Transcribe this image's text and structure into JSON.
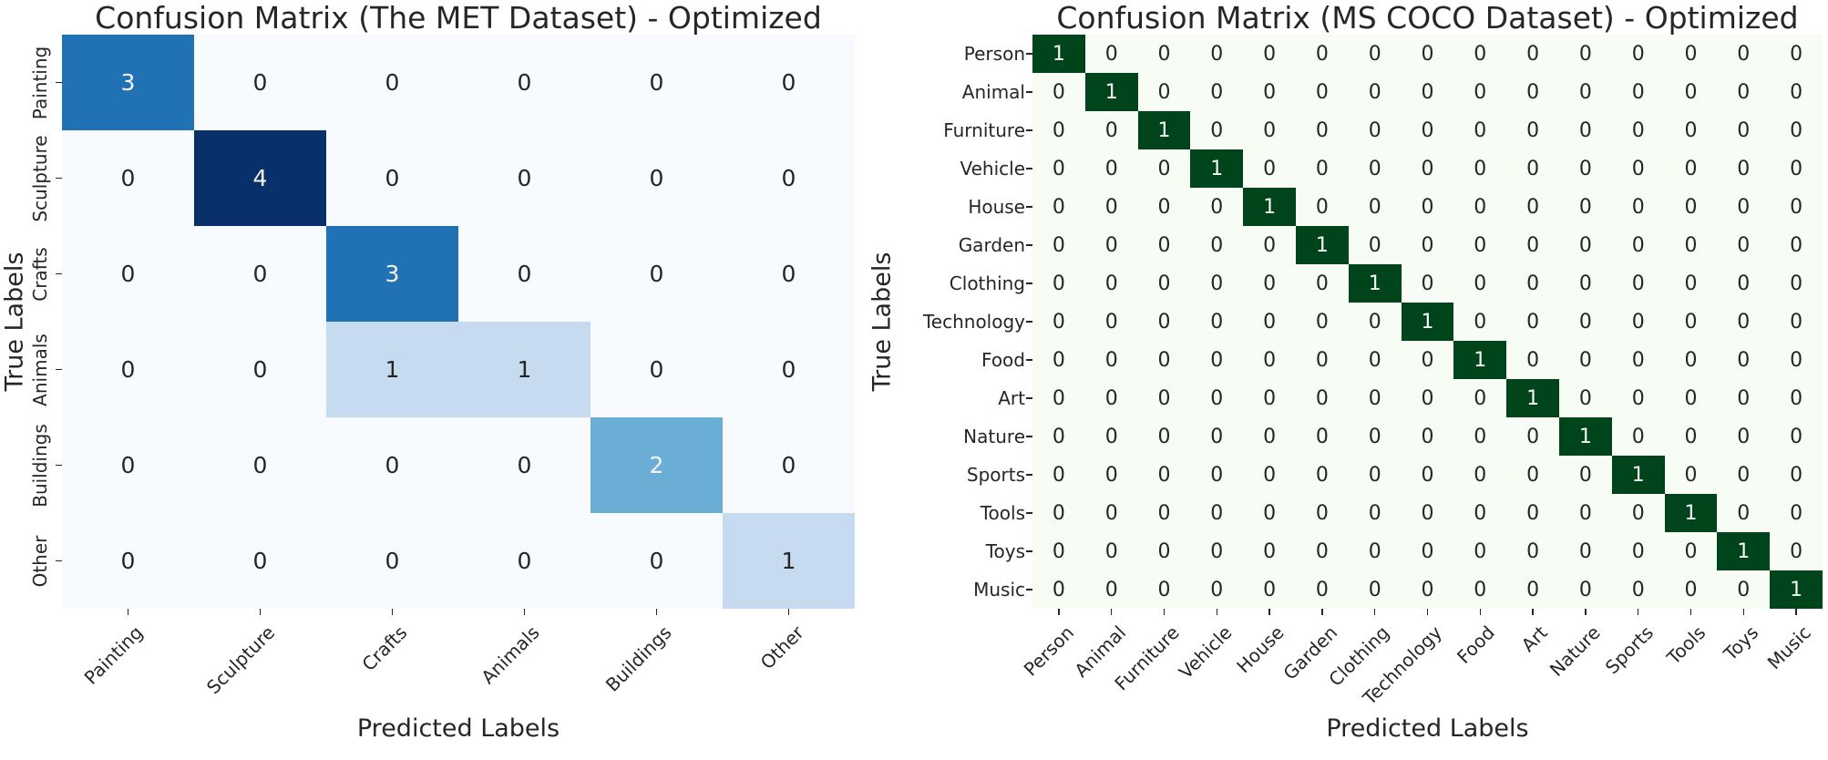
{
  "chart_data": [
    {
      "type": "heatmap",
      "title": "Confusion Matrix (The MET Dataset) - Optimized",
      "xlabel": "Predicted Labels",
      "ylabel": "True Labels",
      "x_categories": [
        "Painting",
        "Sculpture",
        "Crafts",
        "Animals",
        "Buildings",
        "Other"
      ],
      "y_categories": [
        "Painting",
        "Sculpture",
        "Crafts",
        "Animals",
        "Buildings",
        "Other"
      ],
      "matrix": [
        [
          3,
          0,
          0,
          0,
          0,
          0
        ],
        [
          0,
          4,
          0,
          0,
          0,
          0
        ],
        [
          0,
          0,
          3,
          0,
          0,
          0
        ],
        [
          0,
          0,
          1,
          1,
          0,
          0
        ],
        [
          0,
          0,
          0,
          0,
          2,
          0
        ],
        [
          0,
          0,
          0,
          0,
          0,
          1
        ]
      ],
      "colormap": "Blues",
      "vmin": 0,
      "vmax": 4,
      "value_colors": {
        "0": "#f7fbff",
        "1": "#c6dbef",
        "2": "#6aaed6",
        "3": "#2171b5",
        "4": "#08306b"
      },
      "annotation_text_colors": {
        "on_light": "#262626",
        "on_dark": "#f5f5f5"
      },
      "legend_position": "none",
      "grid": false
    },
    {
      "type": "heatmap",
      "title": "Confusion Matrix (MS COCO Dataset) - Optimized",
      "xlabel": "Predicted Labels",
      "ylabel": "True Labels",
      "x_categories": [
        "Person",
        "Animal",
        "Furniture",
        "Vehicle",
        "House",
        "Garden",
        "Clothing",
        "Technology",
        "Food",
        "Art",
        "Nature",
        "Sports",
        "Tools",
        "Toys",
        "Music"
      ],
      "y_categories": [
        "Person",
        "Animal",
        "Furniture",
        "Vehicle",
        "House",
        "Garden",
        "Clothing",
        "Technology",
        "Food",
        "Art",
        "Nature",
        "Sports",
        "Tools",
        "Toys",
        "Music"
      ],
      "matrix": [
        [
          1,
          0,
          0,
          0,
          0,
          0,
          0,
          0,
          0,
          0,
          0,
          0,
          0,
          0,
          0
        ],
        [
          0,
          1,
          0,
          0,
          0,
          0,
          0,
          0,
          0,
          0,
          0,
          0,
          0,
          0,
          0
        ],
        [
          0,
          0,
          1,
          0,
          0,
          0,
          0,
          0,
          0,
          0,
          0,
          0,
          0,
          0,
          0
        ],
        [
          0,
          0,
          0,
          1,
          0,
          0,
          0,
          0,
          0,
          0,
          0,
          0,
          0,
          0,
          0
        ],
        [
          0,
          0,
          0,
          0,
          1,
          0,
          0,
          0,
          0,
          0,
          0,
          0,
          0,
          0,
          0
        ],
        [
          0,
          0,
          0,
          0,
          0,
          1,
          0,
          0,
          0,
          0,
          0,
          0,
          0,
          0,
          0
        ],
        [
          0,
          0,
          0,
          0,
          0,
          0,
          1,
          0,
          0,
          0,
          0,
          0,
          0,
          0,
          0
        ],
        [
          0,
          0,
          0,
          0,
          0,
          0,
          0,
          1,
          0,
          0,
          0,
          0,
          0,
          0,
          0
        ],
        [
          0,
          0,
          0,
          0,
          0,
          0,
          0,
          0,
          1,
          0,
          0,
          0,
          0,
          0,
          0
        ],
        [
          0,
          0,
          0,
          0,
          0,
          0,
          0,
          0,
          0,
          1,
          0,
          0,
          0,
          0,
          0
        ],
        [
          0,
          0,
          0,
          0,
          0,
          0,
          0,
          0,
          0,
          0,
          1,
          0,
          0,
          0,
          0
        ],
        [
          0,
          0,
          0,
          0,
          0,
          0,
          0,
          0,
          0,
          0,
          0,
          1,
          0,
          0,
          0
        ],
        [
          0,
          0,
          0,
          0,
          0,
          0,
          0,
          0,
          0,
          0,
          0,
          0,
          1,
          0,
          0
        ],
        [
          0,
          0,
          0,
          0,
          0,
          0,
          0,
          0,
          0,
          0,
          0,
          0,
          0,
          1,
          0
        ],
        [
          0,
          0,
          0,
          0,
          0,
          0,
          0,
          0,
          0,
          0,
          0,
          0,
          0,
          0,
          1
        ]
      ],
      "colormap": "Greens",
      "vmin": 0,
      "vmax": 1,
      "value_colors": {
        "0": "#f7fcf5",
        "1": "#00441b"
      },
      "annotation_text_colors": {
        "on_light": "#262626",
        "on_dark": "#f5f5f5"
      },
      "legend_position": "none",
      "grid": false
    }
  ]
}
